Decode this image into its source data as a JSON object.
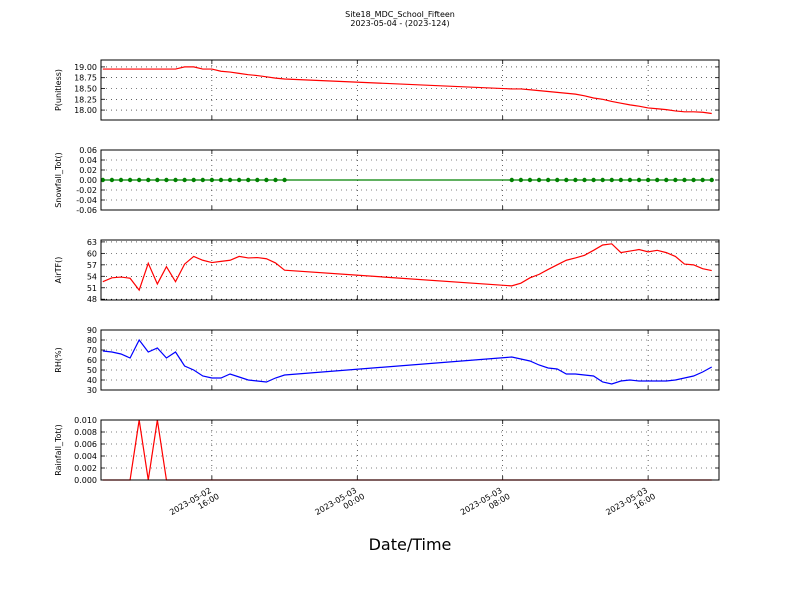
{
  "chart_data": {
    "type": "line",
    "title": "Site18_MDC_School_Fifteen",
    "subtitle": "2023-05-04 - (2023-124)",
    "xlabel": "Date/Time",
    "grid": true,
    "x": [
      "2023-05-02 10:00",
      "2023-05-02 10:30",
      "2023-05-02 11:00",
      "2023-05-02 11:30",
      "2023-05-02 12:00",
      "2023-05-02 12:30",
      "2023-05-02 13:00",
      "2023-05-02 13:30",
      "2023-05-02 14:00",
      "2023-05-02 14:30",
      "2023-05-02 15:00",
      "2023-05-02 15:30",
      "2023-05-02 16:00",
      "2023-05-02 16:30",
      "2023-05-02 17:00",
      "2023-05-02 17:30",
      "2023-05-02 18:00",
      "2023-05-02 18:30",
      "2023-05-02 19:00",
      "2023-05-02 19:30",
      "2023-05-02 20:00",
      "2023-05-03 08:30",
      "2023-05-03 09:00",
      "2023-05-03 09:30",
      "2023-05-03 10:00",
      "2023-05-03 10:30",
      "2023-05-03 11:00",
      "2023-05-03 11:30",
      "2023-05-03 12:00",
      "2023-05-03 12:30",
      "2023-05-03 13:00",
      "2023-05-03 13:30",
      "2023-05-03 14:00",
      "2023-05-03 14:30",
      "2023-05-03 15:00",
      "2023-05-03 15:30",
      "2023-05-03 16:00",
      "2023-05-03 16:30",
      "2023-05-03 17:00",
      "2023-05-03 17:30",
      "2023-05-03 18:00",
      "2023-05-03 18:30",
      "2023-05-03 19:00",
      "2023-05-03 19:30"
    ],
    "xlim": [
      "2023-05-02 09:54",
      "2023-05-03 19:54"
    ],
    "xticks": [
      {
        "value": "2023-05-02 16:00",
        "label": "2023-05-02\n16:00"
      },
      {
        "value": "2023-05-03 00:00",
        "label": "2023-05-03\n00:00"
      },
      {
        "value": "2023-05-03 08:00",
        "label": "2023-05-03\n08:00"
      },
      {
        "value": "2023-05-03 16:00",
        "label": "2023-05-03\n16:00"
      }
    ],
    "series": [
      {
        "name": "P(unitless)",
        "color": "#ff0000",
        "marker": false,
        "ylim": [
          17.77,
          19.16
        ],
        "yticks": [
          {
            "value": 18,
            "label": "18.00"
          },
          18.25,
          {
            "value": 18.5,
            "label": "18.50"
          },
          18.75,
          {
            "value": 19,
            "label": "19.00"
          }
        ],
        "values": [
          18.95,
          18.95,
          18.95,
          18.95,
          18.95,
          18.95,
          18.95,
          18.95,
          18.95,
          19.0,
          19.0,
          18.95,
          18.95,
          18.9,
          18.88,
          18.85,
          18.82,
          18.8,
          18.77,
          18.74,
          18.72,
          18.49,
          18.49,
          18.47,
          18.45,
          18.43,
          18.41,
          18.39,
          18.37,
          18.33,
          18.28,
          18.25,
          18.2,
          18.16,
          18.12,
          18.09,
          18.05,
          18.03,
          18.01,
          17.98,
          17.96,
          17.96,
          17.95,
          17.92
        ]
      },
      {
        "name": "Snowfall_Tot()",
        "color": "#008000",
        "marker": true,
        "ylim": [
          -0.06,
          0.06
        ],
        "yticks": [
          -0.06,
          -0.04,
          -0.02,
          {
            "value": 0,
            "label": "0.00"
          },
          0.02,
          0.04,
          0.06
        ],
        "values": [
          0,
          0,
          0,
          0,
          0,
          0,
          0,
          0,
          0,
          0,
          0,
          0,
          0,
          0,
          0,
          0,
          0,
          0,
          0,
          0,
          0,
          0,
          0,
          0,
          0,
          0,
          0,
          0,
          0,
          0,
          0,
          0,
          0,
          0,
          0,
          0,
          0,
          0,
          0,
          0,
          0,
          0,
          0,
          0
        ]
      },
      {
        "name": "AirTF()",
        "color": "#ff0000",
        "marker": false,
        "ylim": [
          47.8,
          63.5
        ],
        "yticks": [
          48,
          51,
          54,
          57,
          60,
          63
        ],
        "values": [
          52.6,
          53.6,
          53.8,
          53.5,
          50.4,
          57.4,
          52.0,
          56.5,
          52.6,
          57.2,
          59.2,
          58.2,
          57.6,
          57.9,
          58.2,
          59.2,
          58.8,
          58.9,
          58.6,
          57.5,
          55.6,
          51.5,
          52.2,
          53.6,
          54.5,
          55.8,
          57.0,
          58.2,
          58.8,
          59.5,
          60.8,
          62.2,
          62.5,
          60.2,
          60.6,
          61.0,
          60.4,
          60.8,
          60.2,
          59.2,
          57.2,
          57.0,
          56.0,
          55.5
        ]
      },
      {
        "name": "RH(%)",
        "color": "#0000ff",
        "marker": false,
        "ylim": [
          30,
          90
        ],
        "yticks": [
          30,
          40,
          50,
          60,
          70,
          80,
          90
        ],
        "values": [
          69,
          68,
          66,
          62,
          80,
          68,
          72,
          62,
          68,
          54,
          50,
          44,
          42,
          42,
          46,
          43,
          40,
          39,
          38,
          42,
          45,
          63,
          61,
          59,
          55,
          52,
          51,
          46,
          46,
          45,
          44,
          38,
          36,
          39,
          40,
          39,
          39,
          39,
          39,
          40,
          42,
          44,
          48,
          53
        ]
      },
      {
        "name": "Rainfall_Tot()",
        "color": "#ff0000",
        "marker": false,
        "ylim": [
          0,
          0.01
        ],
        "yticks": [
          {
            "value": 0,
            "label": "0.000"
          },
          0.002,
          0.004,
          0.006,
          0.008,
          {
            "value": 0.01,
            "label": "0.010"
          }
        ],
        "values": [
          0,
          0,
          0,
          0,
          0.01,
          0,
          0.01,
          0,
          0,
          0,
          0,
          0,
          0,
          0,
          0,
          0,
          0,
          0,
          0,
          0,
          0,
          0,
          0,
          0,
          0,
          0,
          0,
          0,
          0,
          0,
          0,
          0,
          0,
          0,
          0,
          0,
          0,
          0,
          0,
          0,
          0,
          0,
          0,
          0
        ]
      }
    ]
  }
}
